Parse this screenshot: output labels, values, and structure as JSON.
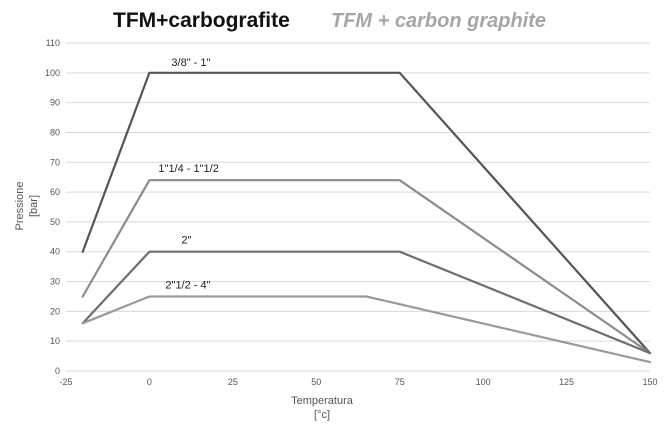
{
  "title": "TFM+carbografite",
  "subtitle": "TFM + carbon graphite",
  "chart_data": {
    "type": "line",
    "title": "TFM+carbografite",
    "subtitle": "TFM + carbon graphite",
    "xlabel_line1": "Temperatura",
    "xlabel_line2": "[°c]",
    "ylabel_line1": "Pressione",
    "ylabel_line2": "[bar]",
    "xlim": [
      -25,
      150
    ],
    "ylim": [
      0,
      110
    ],
    "x_ticks": [
      -25,
      0,
      25,
      50,
      75,
      100,
      125,
      150
    ],
    "y_ticks": [
      0,
      10,
      20,
      30,
      40,
      50,
      60,
      70,
      80,
      90,
      100,
      110
    ],
    "grid": "horizontal",
    "series": [
      {
        "name": "3/8\" - 1\"",
        "color": "#555555",
        "x": [
          -20,
          0,
          75,
          150
        ],
        "y": [
          40,
          100,
          100,
          6
        ]
      },
      {
        "name": "1\"1/4 - 1\"1/2",
        "color": "#8c8c8c",
        "x": [
          -20,
          0,
          75,
          150
        ],
        "y": [
          25,
          64,
          64,
          6
        ]
      },
      {
        "name": "2\"",
        "color": "#6e6e6e",
        "x": [
          -20,
          0,
          75,
          150
        ],
        "y": [
          16,
          40,
          40,
          6
        ]
      },
      {
        "name": "2\"1/2 - 4\"",
        "color": "#9a9a9a",
        "x": [
          -20,
          0,
          65,
          150
        ],
        "y": [
          16,
          25,
          25,
          3
        ]
      }
    ]
  }
}
